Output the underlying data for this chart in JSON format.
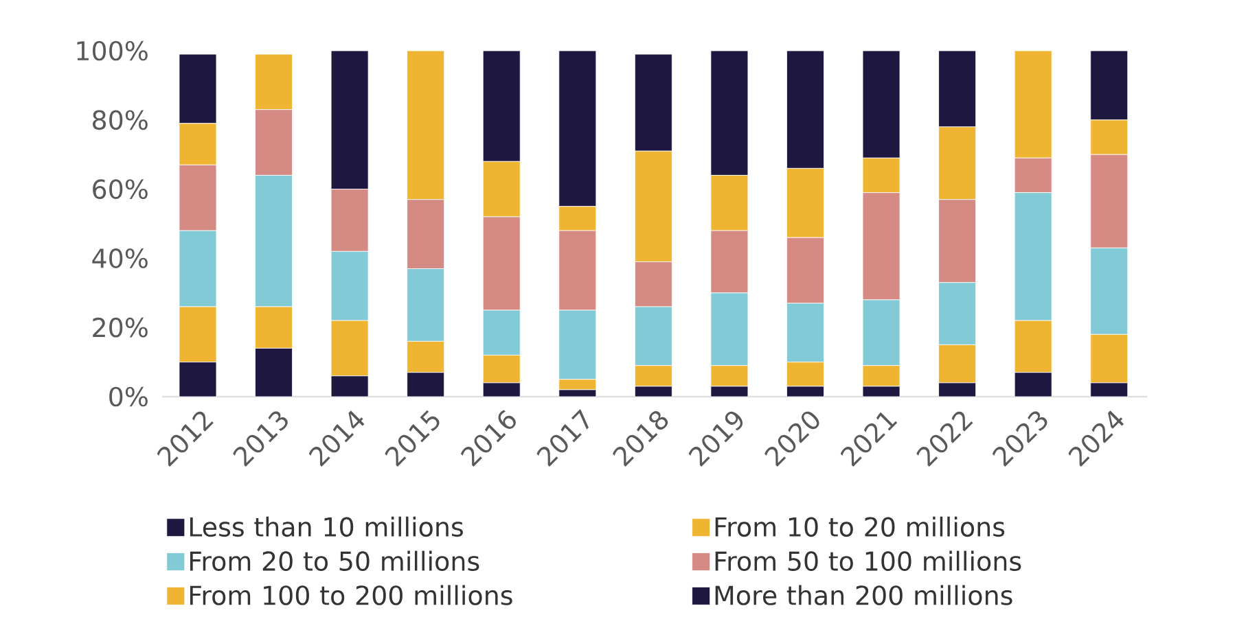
{
  "chart_data": {
    "type": "bar",
    "stacked": true,
    "categories": [
      "2012",
      "2013",
      "2014",
      "2015",
      "2016",
      "2017",
      "2018",
      "2019",
      "2020",
      "2021",
      "2022",
      "2023",
      "2024"
    ],
    "series": [
      {
        "name": "Less than 10 millions",
        "color": "#1e1740",
        "values": [
          10,
          14,
          6,
          7,
          4,
          2,
          3,
          3,
          3,
          3,
          4,
          7,
          4
        ]
      },
      {
        "name": "From 10 to 20 millions",
        "color": "#f0b433",
        "values": [
          16,
          12,
          16,
          9,
          8,
          3,
          6,
          6,
          7,
          6,
          11,
          15,
          14
        ]
      },
      {
        "name": "From 20 to 50 millions",
        "color": "#82cad6",
        "values": [
          22,
          38,
          20,
          21,
          13,
          20,
          17,
          21,
          17,
          19,
          18,
          37,
          25
        ]
      },
      {
        "name": "From 50 to 100 millions",
        "color": "#d58a84",
        "values": [
          19,
          19,
          18,
          20,
          27,
          23,
          13,
          18,
          19,
          31,
          24,
          10,
          27
        ]
      },
      {
        "name": "From 100 to 200 millions",
        "color": "#f0b433",
        "values": [
          12,
          16,
          0,
          43,
          16,
          7,
          32,
          16,
          20,
          10,
          21,
          31,
          10
        ]
      },
      {
        "name": "More than 200 millions",
        "color": "#1e1740",
        "values": [
          20,
          0,
          40,
          0,
          32,
          45,
          28,
          36,
          34,
          31,
          22,
          0,
          20
        ]
      }
    ],
    "ylim": [
      0,
      100
    ],
    "yticks": [
      {
        "value": 0,
        "label": "0%"
      },
      {
        "value": 20,
        "label": "20%"
      },
      {
        "value": 40,
        "label": "40%"
      },
      {
        "value": 60,
        "label": "60%"
      },
      {
        "value": 80,
        "label": "80%"
      },
      {
        "value": 100,
        "label": "100%"
      }
    ],
    "grid": false,
    "legend": "bottom"
  }
}
